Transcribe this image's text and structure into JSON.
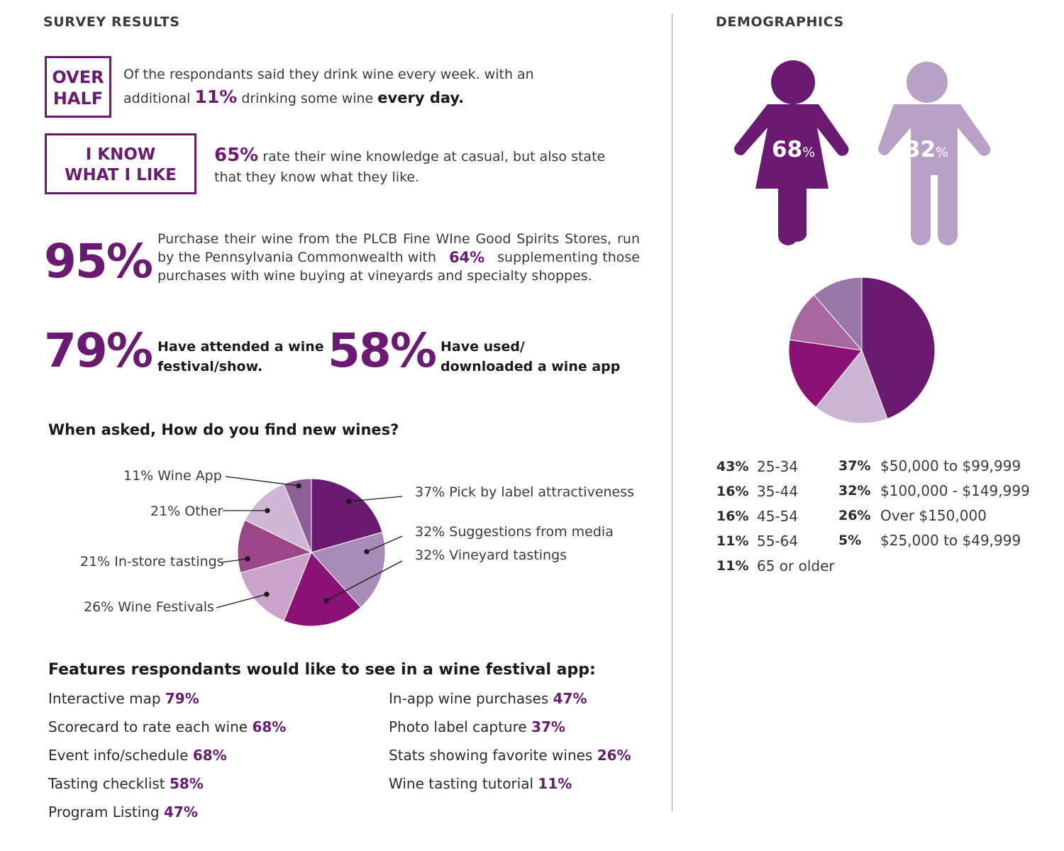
{
  "left_header": "SURVEY RESULTS",
  "right_header": "DEMOGRAPHICS",
  "over_half": {
    "box_line1": "OVER",
    "box_line2": "HALF",
    "text_pre": "Of the respondants said they drink wine every week. with an",
    "text2_pre": "additional",
    "pct": "11%",
    "text2_mid": "drinking some wine",
    "text2_bold": "every day."
  },
  "know": {
    "box_line1": "I KNOW",
    "box_line2": "WHAT I LIKE",
    "pct": "65%",
    "text1": "rate their wine knowledge at casual, but also state",
    "text2": "that they know what they like."
  },
  "purchase": {
    "pct": "95%",
    "line1": "Purchase their wine from the PLCB Fine WIne Good Spirits Stores, run",
    "line2_pre": "by the Pennsylvania Commonwealth with",
    "line2_pct": "64%",
    "line2_post": "supplementing those",
    "line3": "purchases with wine buying at vineyards and specialty shoppes."
  },
  "festival": {
    "pct": "79%",
    "line1": "Have attended a wine",
    "line2": "festival/show."
  },
  "app": {
    "pct": "58%",
    "line1": "Have used/",
    "line2": "downloaded a wine app"
  },
  "find_title": "When asked, How do you find new wines?",
  "find_labels": {
    "wine_app": "11% Wine App",
    "other": "21% Other",
    "instore": "21% In-store tastings",
    "festivals": "26% Wine Festivals",
    "label": "37% Pick by label attractiveness",
    "media": "32% Suggestions from media",
    "vineyard": "32% Vineyard tastings"
  },
  "chart_data": [
    {
      "type": "pie",
      "title": "When asked, How do you find new wines?",
      "labels": [
        "Pick by label attractiveness",
        "Suggestions from media",
        "Vineyard tastings",
        "Wine Festivals",
        "In-store tastings",
        "Other",
        "Wine App"
      ],
      "values": [
        37,
        32,
        32,
        26,
        21,
        21,
        11
      ],
      "colors": [
        "#6b1a72",
        "#a98bb8",
        "#8a1277",
        "#caa3cc",
        "#9a4688",
        "#cdb6d6",
        "#8c5f99"
      ]
    },
    {
      "type": "pie",
      "title": "",
      "labels": [
        "25-34",
        "35-44",
        "45-54",
        "55-64",
        "65 or older"
      ],
      "values": [
        43,
        16,
        16,
        11,
        11
      ],
      "colors": [
        "#6b1a72",
        "#cbb4d4",
        "#8a1277",
        "#a8679e",
        "#9b77a9",
        "#b784aa"
      ]
    }
  ],
  "features_title": "Features respondants would like to see in a wine festival app:",
  "features_left": [
    {
      "label": "Interactive map",
      "pct": "79%"
    },
    {
      "label": "Scorecard to rate each wine",
      "pct": "68%"
    },
    {
      "label": "Event info/schedule",
      "pct": "68%"
    },
    {
      "label": "Tasting checklist",
      "pct": "58%"
    },
    {
      "label": "Program Listing",
      "pct": "47%"
    }
  ],
  "features_right": [
    {
      "label": "In-app wine purchases",
      "pct": "47%"
    },
    {
      "label": "Photo label capture",
      "pct": "37%"
    },
    {
      "label": "Stats showing favorite wines",
      "pct": "26%"
    },
    {
      "label": "Wine tasting tutorial",
      "pct": "11%"
    }
  ],
  "gender": {
    "female_pct": "68",
    "male_pct": "32",
    "pct_sign": "%",
    "female_color": "#6b1a72",
    "male_color": "#b9a0c7"
  },
  "age": [
    {
      "pct": "43%",
      "label": "25-34"
    },
    {
      "pct": "16%",
      "label": "35-44"
    },
    {
      "pct": "16%",
      "label": "45-54"
    },
    {
      "pct": "11%",
      "label": "55-64"
    },
    {
      "pct": "11%",
      "label": "65 or older"
    }
  ],
  "income": [
    {
      "pct": "37%",
      "label": "$50,000 to $99,999"
    },
    {
      "pct": "32%",
      "label": "$100,000 - $149,999"
    },
    {
      "pct": "26%",
      "label": "Over $150,000"
    },
    {
      "pct": "5%",
      "label": "$25,000 to $49,999"
    }
  ]
}
